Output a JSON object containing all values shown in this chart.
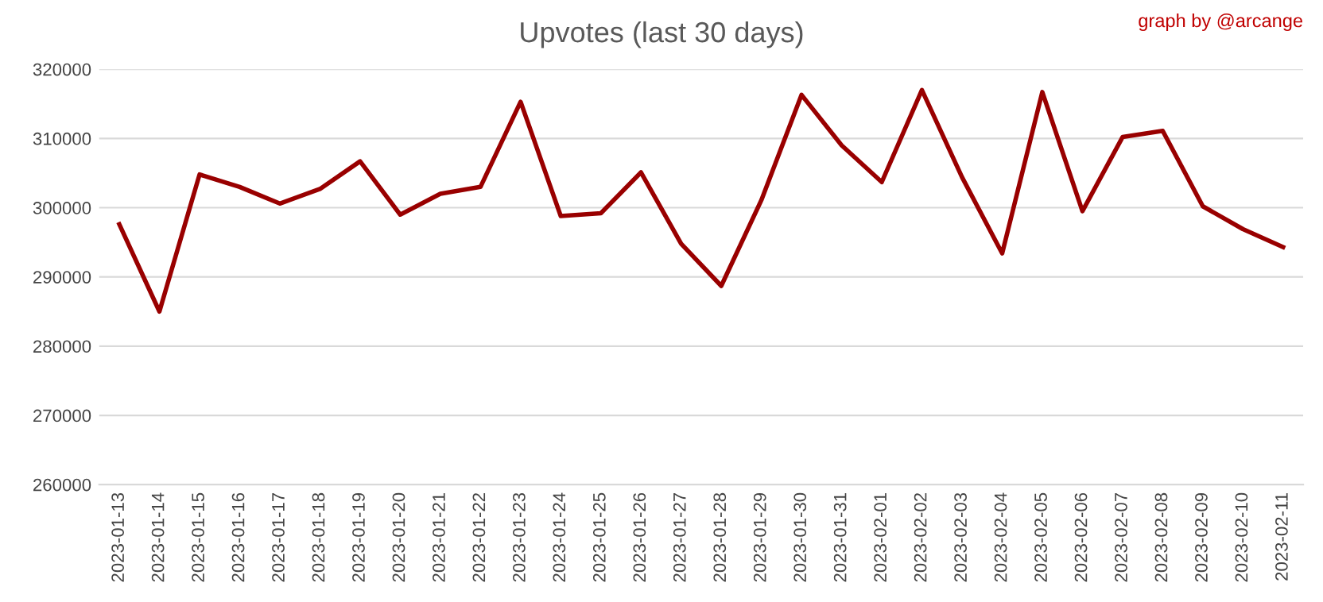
{
  "chart_data": {
    "type": "line",
    "title": "Upvotes (last 30 days)",
    "annotations": [
      "graph by @arcange"
    ],
    "categories": [
      "2023-01-13",
      "2023-01-14",
      "2023-01-15",
      "2023-01-16",
      "2023-01-17",
      "2023-01-18",
      "2023-01-19",
      "2023-01-20",
      "2023-01-21",
      "2023-01-22",
      "2023-01-23",
      "2023-01-24",
      "2023-01-25",
      "2023-01-26",
      "2023-01-27",
      "2023-01-28",
      "2023-01-29",
      "2023-01-30",
      "2023-01-31",
      "2023-02-01",
      "2023-02-02",
      "2023-02-03",
      "2023-02-04",
      "2023-02-05",
      "2023-02-06",
      "2023-02-07",
      "2023-02-08",
      "2023-02-09",
      "2023-02-10",
      "2023-02-11"
    ],
    "series": [
      {
        "color": "#990000",
        "values": [
          297600,
          285000,
          304800,
          303000,
          300600,
          302700,
          306700,
          299000,
          302000,
          303000,
          315300,
          298800,
          299200,
          305100,
          294800,
          288700,
          301100,
          316300,
          309000,
          303700,
          317000,
          304400,
          293400,
          316700,
          299500,
          310200,
          311100,
          300200,
          296900,
          294300
        ]
      }
    ],
    "ylim": [
      260000,
      320000
    ],
    "yticks": [
      260000,
      270000,
      280000,
      290000,
      300000,
      310000,
      320000
    ],
    "grid": "y",
    "legend": false,
    "marker": "none",
    "line_style": "solid"
  }
}
